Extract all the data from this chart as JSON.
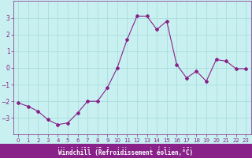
{
  "x": [
    0,
    1,
    2,
    3,
    4,
    5,
    6,
    7,
    8,
    9,
    10,
    11,
    12,
    13,
    14,
    15,
    16,
    17,
    18,
    19,
    20,
    21,
    22,
    23
  ],
  "y": [
    -2.1,
    -2.3,
    -2.6,
    -3.1,
    -3.4,
    -3.3,
    -2.7,
    -2.0,
    -2.0,
    -1.2,
    0.0,
    1.7,
    3.1,
    3.1,
    2.3,
    2.8,
    0.2,
    -0.6,
    -0.2,
    -0.8,
    0.5,
    0.4,
    -0.05,
    -0.05
  ],
  "line_color": "#882288",
  "marker": "D",
  "marker_size": 2,
  "bg_color": "#c8f0f0",
  "grid_color": "#aadddd",
  "xlabel": "Windchill (Refroidissement éolien,°C)",
  "xlabel_bg": "#882288",
  "tick_color": "#882288",
  "ylim": [
    -4,
    4
  ],
  "xlim": [
    -0.5,
    23.5
  ],
  "yticks": [
    -3,
    -2,
    -1,
    0,
    1,
    2,
    3
  ],
  "xticks": [
    0,
    1,
    2,
    3,
    4,
    5,
    6,
    7,
    8,
    9,
    10,
    11,
    12,
    13,
    14,
    15,
    16,
    17,
    18,
    19,
    20,
    21,
    22,
    23
  ]
}
